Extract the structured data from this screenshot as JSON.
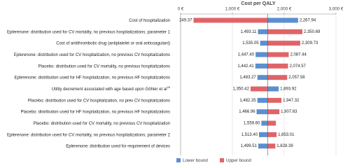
{
  "chart_data": {
    "type": "tornado",
    "title": "Cost per QALY",
    "categories": [
      "Cost of hospitalization",
      "Eplerenone: distribution used for CV mortality, no previous hospitalizations; parameter 1",
      "Cost of antithrombotic drug (antiplatelet or oral anticoagulant)",
      "Eplerenone: distribution used for CV hospitalization, no previous CV hospitalizations",
      "Placebo: distribution used for CV mortality, no previous hospitalizations",
      "Eplerenone: distribution used for HF hospitalization, no previous HF hospitalizations",
      "Utility decrement associated with age based upon Göhler et al",
      "Placebo: distribution used for CV hospitalization, no prev CV hospitalizations",
      "Placebo: distribution used for HF hospitalization, no previous HF hospitalizations",
      "Placebo: distribution used for CV mortality, no previous CV hospitalization",
      "Eplerenone: distribution used for CV mortality, no previous hospitalizations; parameter 2",
      "Eplerenone: distribution used for requirement of devices"
    ],
    "category_notes": [
      null,
      null,
      null,
      null,
      null,
      null,
      "26",
      null,
      null,
      null,
      null,
      null
    ],
    "base": 1680,
    "series": [
      {
        "name": "Lower bound",
        "color": "#5b8fcf",
        "values": [
          2267.94,
          1493.11,
          1535.05,
          1447.4,
          1442.41,
          1483.27,
          1893.92,
          1482.35,
          1466.96,
          1559.6,
          1513.4,
          1499.51
        ],
        "value_labels": [
          "2,267.94",
          "1,493.11",
          "1,535.05",
          "1,447.40",
          "1,442.41",
          "1,483.27",
          "1,893.92",
          "1,482.35",
          "1,466.96",
          "1,559.60",
          "1,513.40",
          "1,499.51"
        ]
      },
      {
        "name": "Upper bound",
        "color": "#e06467",
        "values": [
          249.37,
          2350.69,
          2309.73,
          2087.44,
          2074.57,
          2057.58,
          1350.42,
          1947.32,
          1907.63,
          1840,
          1853.01,
          1828.39
        ],
        "value_labels": [
          "249.37",
          "2,350.69",
          "2,309.73",
          "2,087.44",
          "2,074.57",
          "2,057.58",
          "1,350.42",
          "1,947.32",
          "1,907.63",
          null,
          "1,853.01",
          "1,828.39"
        ]
      }
    ],
    "xlim": [
      0,
      3000
    ],
    "xticks": [
      {
        "value": 0,
        "label": "0 €"
      },
      {
        "value": 1000,
        "label": "1,000 €"
      },
      {
        "value": 2000,
        "label": "2,000 €"
      },
      {
        "value": 3000,
        "label": "3,000 €"
      }
    ],
    "grid": true,
    "legend": "bottom"
  }
}
